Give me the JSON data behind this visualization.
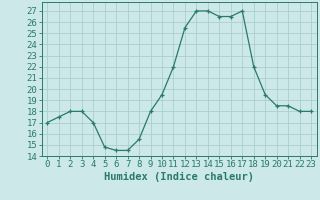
{
  "x": [
    0,
    1,
    2,
    3,
    4,
    5,
    6,
    7,
    8,
    9,
    10,
    11,
    12,
    13,
    14,
    15,
    16,
    17,
    18,
    19,
    20,
    21,
    22,
    23
  ],
  "y": [
    17,
    17.5,
    18,
    18,
    17,
    14.8,
    14.5,
    14.5,
    15.5,
    18,
    19.5,
    22,
    25.5,
    27,
    27,
    26.5,
    26.5,
    27,
    22,
    19.5,
    18.5,
    18.5,
    18,
    18
  ],
  "xlabel": "Humidex (Indice chaleur)",
  "ylabel": "",
  "xlim": [
    -0.5,
    23.5
  ],
  "ylim": [
    14,
    27.8
  ],
  "yticks": [
    14,
    15,
    16,
    17,
    18,
    19,
    20,
    21,
    22,
    23,
    24,
    25,
    26,
    27
  ],
  "xticks": [
    0,
    1,
    2,
    3,
    4,
    5,
    6,
    7,
    8,
    9,
    10,
    11,
    12,
    13,
    14,
    15,
    16,
    17,
    18,
    19,
    20,
    21,
    22,
    23
  ],
  "line_color": "#2a7a6a",
  "marker": "+",
  "bg_color": "#cce8e8",
  "grid_color": "#aacece",
  "tick_label_fontsize": 6.5,
  "xlabel_fontsize": 7.5
}
